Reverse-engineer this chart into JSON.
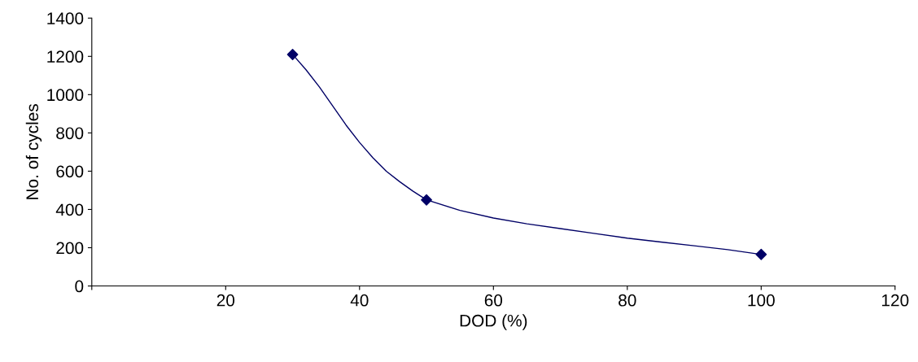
{
  "chart_data": {
    "type": "scatter",
    "xlabel": "DOD (%)",
    "ylabel": "No. of cycles",
    "x": [
      30,
      50,
      100
    ],
    "series": [
      {
        "color": "#000066",
        "marker": "diamond",
        "values": [
          1210,
          450,
          165
        ]
      },
      {
        "type": "line",
        "color": "#000066",
        "marker": "none",
        "line_style": "solid",
        "x": [
          30,
          32,
          34,
          36,
          38,
          40,
          42,
          44,
          46,
          48,
          50,
          55,
          60,
          65,
          70,
          75,
          80,
          85,
          90,
          95,
          100
        ],
        "values": [
          1210,
          1130,
          1040,
          940,
          840,
          750,
          670,
          600,
          545,
          495,
          450,
          395,
          355,
          325,
          300,
          275,
          250,
          230,
          210,
          190,
          165
        ]
      }
    ],
    "grid": false,
    "legend": false,
    "xlim": [
      0,
      120
    ],
    "xticks": [
      {
        "value": 0,
        "label": null
      },
      20,
      40,
      60,
      80,
      100,
      120
    ],
    "ylim": [
      0,
      1400
    ],
    "yticks": [
      0,
      200,
      400,
      600,
      800,
      1000,
      1200,
      1400
    ]
  }
}
